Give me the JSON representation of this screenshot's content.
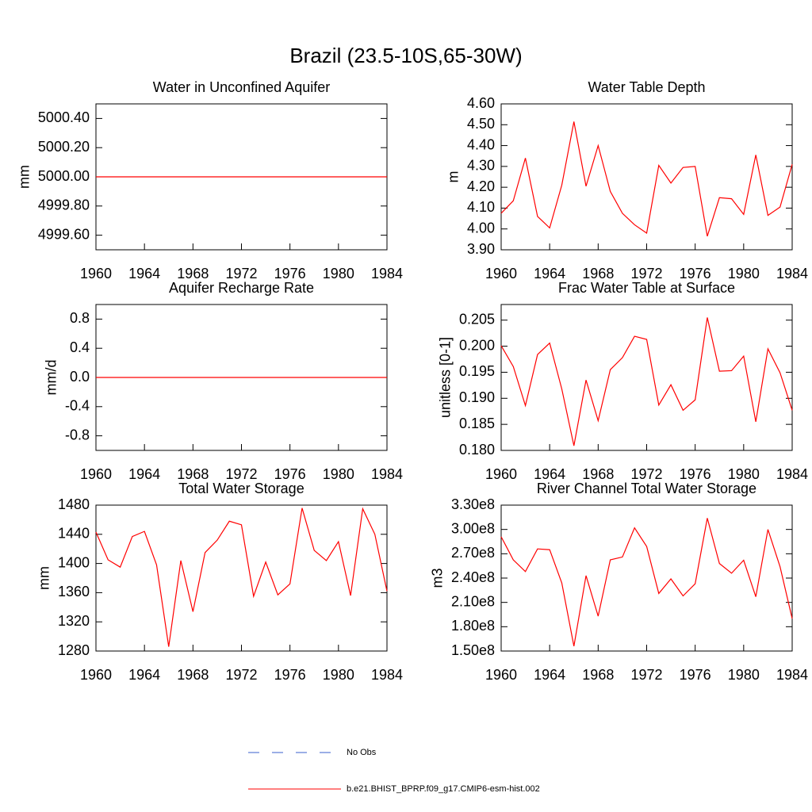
{
  "title": "Brazil (23.5-10S,65-30W)",
  "legend": {
    "entries": [
      {
        "name": "No Obs",
        "color": "#3a5fcd",
        "style": "dashed"
      },
      {
        "name": "b.e21.BHIST_BPRP.f09_g17.CMIP6-esm-hist.002",
        "color": "#ff0000",
        "style": "solid"
      }
    ]
  },
  "chart_data": [
    {
      "type": "line",
      "title": "Water in Unconfined Aquifer",
      "y_label": "mm",
      "x": [
        1960,
        1961,
        1962,
        1963,
        1964,
        1965,
        1966,
        1967,
        1968,
        1969,
        1970,
        1971,
        1972,
        1973,
        1974,
        1975,
        1976,
        1977,
        1978,
        1979,
        1980,
        1981,
        1982,
        1983,
        1984
      ],
      "xlim": [
        1960,
        1984
      ],
      "xticks": [
        1960,
        1964,
        1968,
        1972,
        1976,
        1980,
        1984
      ],
      "ylim": [
        4999.5,
        5000.5
      ],
      "yticks": [
        {
          "value": 4999.6,
          "label": "4999.60"
        },
        {
          "value": 4999.8,
          "label": "4999.80"
        },
        {
          "value": 5000,
          "label": "5000.00"
        },
        {
          "value": 5000.2,
          "label": "5000.20"
        },
        {
          "value": 5000.4,
          "label": "5000.40"
        }
      ],
      "series": [
        {
          "color": "#ff0000",
          "values": [
            5000,
            5000,
            5000,
            5000,
            5000,
            5000,
            5000,
            5000,
            5000,
            5000,
            5000,
            5000,
            5000,
            5000,
            5000,
            5000,
            5000,
            5000,
            5000,
            5000,
            5000,
            5000,
            5000,
            5000,
            5000
          ]
        }
      ]
    },
    {
      "type": "line",
      "title": "Water Table Depth",
      "y_label": "m",
      "x": [
        1960,
        1961,
        1962,
        1963,
        1964,
        1965,
        1966,
        1967,
        1968,
        1969,
        1970,
        1971,
        1972,
        1973,
        1974,
        1975,
        1976,
        1977,
        1978,
        1979,
        1980,
        1981,
        1982,
        1983,
        1984
      ],
      "xlim": [
        1960,
        1984
      ],
      "xticks": [
        1960,
        1964,
        1968,
        1972,
        1976,
        1980,
        1984
      ],
      "ylim": [
        3.9,
        4.6
      ],
      "yticks": [
        {
          "value": 3.9,
          "label": "3.90"
        },
        {
          "value": 4.0,
          "label": "4.00"
        },
        {
          "value": 4.1,
          "label": "4.10"
        },
        {
          "value": 4.2,
          "label": "4.20"
        },
        {
          "value": 4.3,
          "label": "4.30"
        },
        {
          "value": 4.4,
          "label": "4.40"
        },
        {
          "value": 4.5,
          "label": "4.50"
        },
        {
          "value": 4.6,
          "label": "4.60"
        }
      ],
      "series": [
        {
          "color": "#ff0000",
          "values": [
            4.075,
            4.135,
            4.34,
            4.06,
            4.005,
            4.21,
            4.515,
            4.205,
            4.4,
            4.18,
            4.075,
            4.02,
            3.98,
            4.305,
            4.22,
            4.295,
            4.3,
            3.965,
            4.15,
            4.145,
            4.07,
            4.355,
            4.065,
            4.105,
            4.31
          ]
        }
      ]
    },
    {
      "type": "line",
      "title": "Aquifer Recharge Rate",
      "y_label": "mm/d",
      "x": [
        1960,
        1961,
        1962,
        1963,
        1964,
        1965,
        1966,
        1967,
        1968,
        1969,
        1970,
        1971,
        1972,
        1973,
        1974,
        1975,
        1976,
        1977,
        1978,
        1979,
        1980,
        1981,
        1982,
        1983,
        1984
      ],
      "xlim": [
        1960,
        1984
      ],
      "xticks": [
        1960,
        1964,
        1968,
        1972,
        1976,
        1980,
        1984
      ],
      "ylim": [
        -1,
        1
      ],
      "yticks": [
        -0.8,
        -0.4,
        {
          "value": 0,
          "label": "0.0"
        },
        0.4,
        0.8
      ],
      "series": [
        {
          "color": "#ff0000",
          "values": [
            0,
            0,
            0,
            0,
            0,
            0,
            0,
            0,
            0,
            0,
            0,
            0,
            0,
            0,
            0,
            0,
            0,
            0,
            0,
            0,
            0,
            0,
            0,
            0,
            0
          ]
        }
      ]
    },
    {
      "type": "line",
      "title": "Frac Water Table at Surface",
      "y_label": "unitless [0-1]",
      "x": [
        1960,
        1961,
        1962,
        1963,
        1964,
        1965,
        1966,
        1967,
        1968,
        1969,
        1970,
        1971,
        1972,
        1973,
        1974,
        1975,
        1976,
        1977,
        1978,
        1979,
        1980,
        1981,
        1982,
        1983,
        1984
      ],
      "xlim": [
        1960,
        1984
      ],
      "xticks": [
        1960,
        1964,
        1968,
        1972,
        1976,
        1980,
        1984
      ],
      "ylim": [
        0.18,
        0.208
      ],
      "yticks": [
        {
          "value": 0.18,
          "label": "0.180"
        },
        0.185,
        {
          "value": 0.19,
          "label": "0.190"
        },
        0.195,
        {
          "value": 0.2,
          "label": "0.200"
        },
        0.205
      ],
      "series": [
        {
          "color": "#ff0000",
          "values": [
            0.2001,
            0.1961,
            0.1886,
            0.1984,
            0.2006,
            0.1918,
            0.1809,
            0.1935,
            0.1857,
            0.1955,
            0.1978,
            0.2019,
            0.2013,
            0.1887,
            0.1926,
            0.1877,
            0.1897,
            0.2055,
            0.1952,
            0.1953,
            0.1981,
            0.1855,
            0.1995,
            0.1949,
            0.1877
          ]
        }
      ]
    },
    {
      "type": "line",
      "title": "Total Water Storage",
      "y_label": "mm",
      "x": [
        1960,
        1961,
        1962,
        1963,
        1964,
        1965,
        1966,
        1967,
        1968,
        1969,
        1970,
        1971,
        1972,
        1973,
        1974,
        1975,
        1976,
        1977,
        1978,
        1979,
        1980,
        1981,
        1982,
        1983,
        1984
      ],
      "xlim": [
        1960,
        1984
      ],
      "xticks": [
        1960,
        1964,
        1968,
        1972,
        1976,
        1980,
        1984
      ],
      "ylim": [
        1280,
        1480
      ],
      "yticks": [
        1280,
        1320,
        1360,
        1400,
        1440,
        1480
      ],
      "series": [
        {
          "color": "#ff0000",
          "values": [
            1443,
            1405,
            1395,
            1437,
            1444,
            1398,
            1286,
            1404,
            1334,
            1415,
            1432,
            1458,
            1453,
            1355,
            1402,
            1357,
            1372,
            1476,
            1418,
            1404,
            1430,
            1356,
            1475,
            1440,
            1362
          ]
        }
      ]
    },
    {
      "type": "line",
      "title": "River Channel Total Water Storage",
      "y_label": "m3",
      "x": [
        1960,
        1961,
        1962,
        1963,
        1964,
        1965,
        1966,
        1967,
        1968,
        1969,
        1970,
        1971,
        1972,
        1973,
        1974,
        1975,
        1976,
        1977,
        1978,
        1979,
        1980,
        1981,
        1982,
        1983,
        1984
      ],
      "xlim": [
        1960,
        1984
      ],
      "xticks": [
        1960,
        1964,
        1968,
        1972,
        1976,
        1980,
        1984
      ],
      "ylim": [
        150000000,
        330000000
      ],
      "yticks": [
        {
          "value": 150000000,
          "label": "1.50e8"
        },
        {
          "value": 180000000,
          "label": "1.80e8"
        },
        {
          "value": 210000000,
          "label": "2.10e8"
        },
        {
          "value": 240000000,
          "label": "2.40e8"
        },
        {
          "value": 270000000,
          "label": "2.70e8"
        },
        {
          "value": 300000000,
          "label": "3.00e8"
        },
        {
          "value": 330000000,
          "label": "3.30e8"
        }
      ],
      "series": [
        {
          "color": "#ff0000",
          "values": [
            291000000,
            262500000,
            248000000,
            276000000,
            275000000,
            234000000,
            156000000,
            243000000,
            193000000,
            262500000,
            266000000,
            302000000,
            279000000,
            221000000,
            239000000,
            218000000,
            233000000,
            314000000,
            258000000,
            246000000,
            262000000,
            217000000,
            300000000,
            254000000,
            190000000
          ]
        }
      ]
    }
  ]
}
